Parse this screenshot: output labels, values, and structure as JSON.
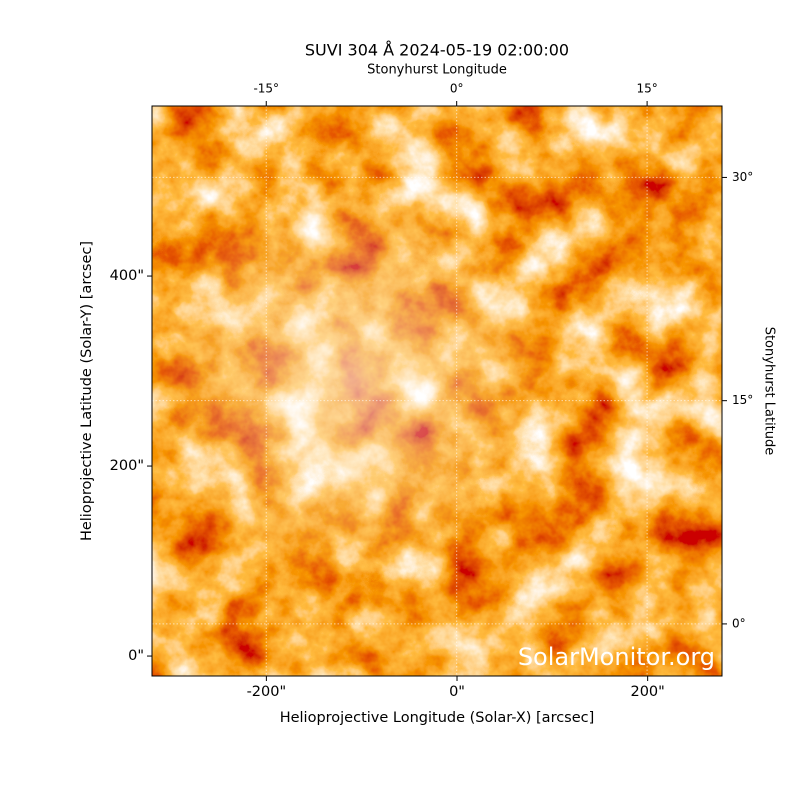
{
  "chart_data": {
    "type": "image",
    "title": "SUVI 304 Å 2024-05-19 02:00:00",
    "xlabel": "Helioprojective Longitude (Solar-X) [arcsec]",
    "ylabel": "Helioprojective Latitude (Solar-Y) [arcsec]",
    "x2label": "Stonyhurst Longitude",
    "y2label": "Stonyhurst Latitude",
    "watermark": "SolarMonitor.org",
    "xlim": [
      -320,
      278
    ],
    "xticks": [
      {
        "value": -200,
        "label": "-200\""
      },
      {
        "value": 0,
        "label": "0\""
      },
      {
        "value": 200,
        "label": "200\""
      }
    ],
    "ylim": [
      -21,
      579
    ],
    "yticks": [
      {
        "value": 0,
        "label": "0\""
      },
      {
        "value": 200,
        "label": "200\""
      },
      {
        "value": 400,
        "label": "400\""
      }
    ],
    "x2lim": [
      -24,
      20.9
    ],
    "x2ticks": [
      {
        "value": -15,
        "label": "-15°"
      },
      {
        "value": 0,
        "label": "0°"
      },
      {
        "value": 15,
        "label": "15°"
      }
    ],
    "y2lim": [
      -3.5,
      34.8
    ],
    "y2ticks": [
      {
        "value": 0,
        "label": "0°"
      },
      {
        "value": 15,
        "label": "15°"
      },
      {
        "value": 30,
        "label": "30°"
      }
    ],
    "grid": true
  }
}
